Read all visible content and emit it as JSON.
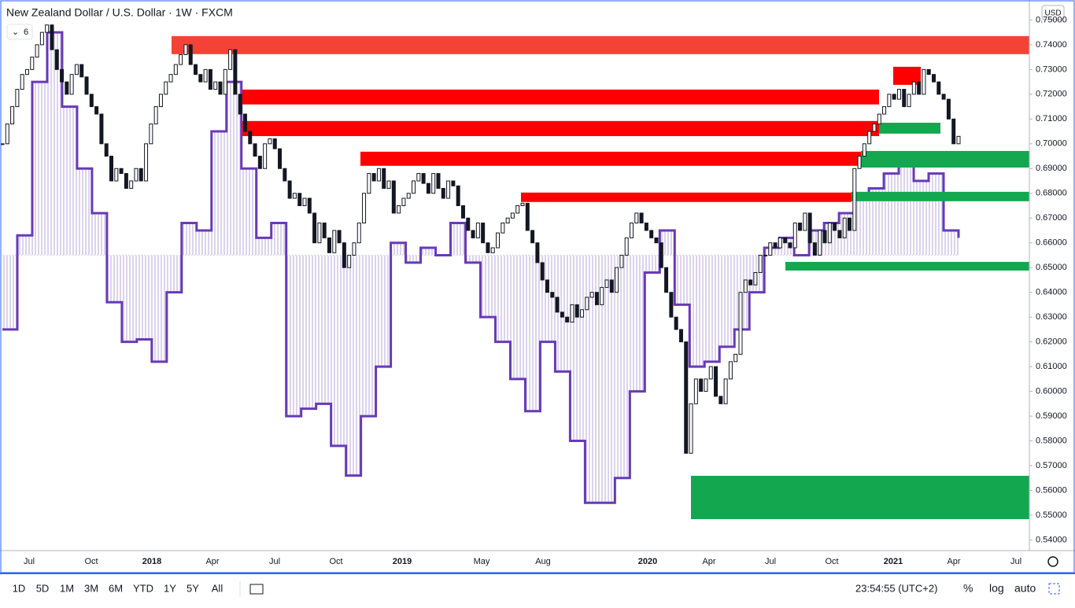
{
  "chart_data": {
    "type": "candlestick",
    "title": "New Zealand Dollar / U.S. Dollar · 1W · FXCM",
    "indicator_count": "6",
    "currency": "USD",
    "close": [
      0.7,
      0.708,
      0.715,
      0.722,
      0.728,
      0.73,
      0.735,
      0.74,
      0.745,
      0.748,
      0.738,
      0.73,
      0.725,
      0.72,
      0.728,
      0.732,
      0.727,
      0.72,
      0.715,
      0.712,
      0.7,
      0.695,
      0.685,
      0.69,
      0.688,
      0.682,
      0.685,
      0.69,
      0.685,
      0.7,
      0.708,
      0.715,
      0.72,
      0.725,
      0.728,
      0.732,
      0.736,
      0.74,
      0.732,
      0.728,
      0.725,
      0.73,
      0.722,
      0.725,
      0.72,
      0.73,
      0.738,
      0.72,
      0.712,
      0.705,
      0.7,
      0.695,
      0.69,
      0.7,
      0.702,
      0.698,
      0.69,
      0.685,
      0.678,
      0.68,
      0.675,
      0.678,
      0.672,
      0.66,
      0.668,
      0.662,
      0.656,
      0.665,
      0.66,
      0.65,
      0.655,
      0.66,
      0.668,
      0.68,
      0.688,
      0.685,
      0.69,
      0.682,
      0.685,
      0.672,
      0.675,
      0.678,
      0.68,
      0.685,
      0.688,
      0.684,
      0.68,
      0.688,
      0.682,
      0.678,
      0.685,
      0.683,
      0.675,
      0.67,
      0.665,
      0.662,
      0.668,
      0.66,
      0.656,
      0.658,
      0.664,
      0.668,
      0.67,
      0.672,
      0.675,
      0.676,
      0.665,
      0.66,
      0.652,
      0.645,
      0.64,
      0.638,
      0.632,
      0.63,
      0.628,
      0.635,
      0.63,
      0.633,
      0.638,
      0.64,
      0.635,
      0.642,
      0.645,
      0.64,
      0.65,
      0.655,
      0.662,
      0.668,
      0.672,
      0.668,
      0.665,
      0.662,
      0.66,
      0.65,
      0.64,
      0.63,
      0.625,
      0.62,
      0.575,
      0.595,
      0.605,
      0.6,
      0.605,
      0.61,
      0.598,
      0.595,
      0.605,
      0.612,
      0.615,
      0.64,
      0.645,
      0.643,
      0.648,
      0.655,
      0.655,
      0.66,
      0.658,
      0.662,
      0.66,
      0.658,
      0.668,
      0.665,
      0.672,
      0.66,
      0.655,
      0.665,
      0.66,
      0.668,
      0.665,
      0.662,
      0.67,
      0.665,
      0.69,
      0.695,
      0.7,
      0.705,
      0.708,
      0.712,
      0.715,
      0.72,
      0.718,
      0.722,
      0.715,
      0.72,
      0.725,
      0.72,
      0.73,
      0.728,
      0.725,
      0.72,
      0.718,
      0.71,
      0.7,
      0.703
    ],
    "indicator": {
      "color": "#673ab7",
      "fill": "#d1c4e9",
      "base": 0.655,
      "values": [
        0.625,
        0.663,
        0.725,
        0.745,
        0.715,
        0.69,
        0.672,
        0.636,
        0.62,
        0.621,
        0.612,
        0.64,
        0.668,
        0.665,
        0.705,
        0.725,
        0.69,
        0.662,
        0.668,
        0.59,
        0.593,
        0.595,
        0.578,
        0.566,
        0.59,
        0.61,
        0.66,
        0.652,
        0.658,
        0.655,
        0.668,
        0.652,
        0.63,
        0.62,
        0.605,
        0.592,
        0.62,
        0.608,
        0.58,
        0.555,
        0.555,
        0.565,
        0.6,
        0.648,
        0.665,
        0.635,
        0.61,
        0.612,
        0.618,
        0.625,
        0.64,
        0.658,
        0.662,
        0.655,
        0.665,
        0.668,
        0.672,
        0.678,
        0.682,
        0.688,
        0.692,
        0.685,
        0.688,
        0.665,
        0.662
      ]
    },
    "zones": [
      {
        "color": "#f44336",
        "top": 0.7435,
        "bottom": 0.7362
      },
      {
        "color": "#ff0000",
        "top": 0.7219,
        "bottom": 0.7159
      },
      {
        "color": "#ff0000",
        "top": 0.7092,
        "bottom": 0.7031
      },
      {
        "color": "#ff0000",
        "top": 0.6968,
        "bottom": 0.6911
      },
      {
        "color": "#ff0000",
        "top": 0.6803,
        "bottom": 0.6765
      },
      {
        "color": "#ff0000",
        "top": 0.7311,
        "bottom": 0.7238
      },
      {
        "color": "#13a84f",
        "top": 0.7085,
        "bottom": 0.7041
      },
      {
        "color": "#13a84f",
        "top": 0.6971,
        "bottom": 0.6904
      },
      {
        "color": "#13a84f",
        "top": 0.6806,
        "bottom": 0.6768
      },
      {
        "color": "#13a84f",
        "top": 0.6523,
        "bottom": 0.6488
      },
      {
        "color": "#13a84f",
        "top": 0.5659,
        "bottom": 0.5484
      }
    ],
    "ylim": [
      0.5357,
      0.7568
    ],
    "yticks": [
      {
        "value": 0.54,
        "label": "0.54000"
      },
      {
        "value": 0.55,
        "label": "0.55000"
      },
      {
        "value": 0.56,
        "label": "0.56000"
      },
      {
        "value": 0.57,
        "label": "0.57000"
      },
      {
        "value": 0.58,
        "label": "0.58000"
      },
      {
        "value": 0.59,
        "label": "0.59000"
      },
      {
        "value": 0.6,
        "label": "0.60000"
      },
      {
        "value": 0.61,
        "label": "0.61000"
      },
      {
        "value": 0.62,
        "label": "0.62000"
      },
      {
        "value": 0.63,
        "label": "0.63000"
      },
      {
        "value": 0.64,
        "label": "0.64000"
      },
      {
        "value": 0.65,
        "label": "0.65000"
      },
      {
        "value": 0.66,
        "label": "0.66000"
      },
      {
        "value": 0.67,
        "label": "0.67000"
      },
      {
        "value": 0.68,
        "label": "0.68000"
      },
      {
        "value": 0.69,
        "label": "0.69000"
      },
      {
        "value": 0.7,
        "label": "0.70000"
      },
      {
        "value": 0.71,
        "label": "0.71000"
      },
      {
        "value": 0.72,
        "label": "0.72000"
      },
      {
        "value": 0.73,
        "label": "0.73000"
      },
      {
        "value": 0.74,
        "label": "0.74000"
      },
      {
        "value": 0.75,
        "label": "0.75000"
      }
    ],
    "x_labels": [
      "Jul",
      "Oct",
      "2018",
      "Apr",
      "Jul",
      "Oct",
      "2019",
      "May",
      "Aug",
      "2020",
      "Apr",
      "Jul",
      "Oct",
      "2021",
      "Apr",
      "Jul"
    ]
  },
  "toolbar": {
    "ranges": [
      "1D",
      "5D",
      "1M",
      "3M",
      "6M",
      "YTD",
      "1Y",
      "5Y",
      "All"
    ],
    "clock": "23:54:55 (UTC+2)",
    "percent": "%",
    "log": "log",
    "auto": "auto"
  }
}
